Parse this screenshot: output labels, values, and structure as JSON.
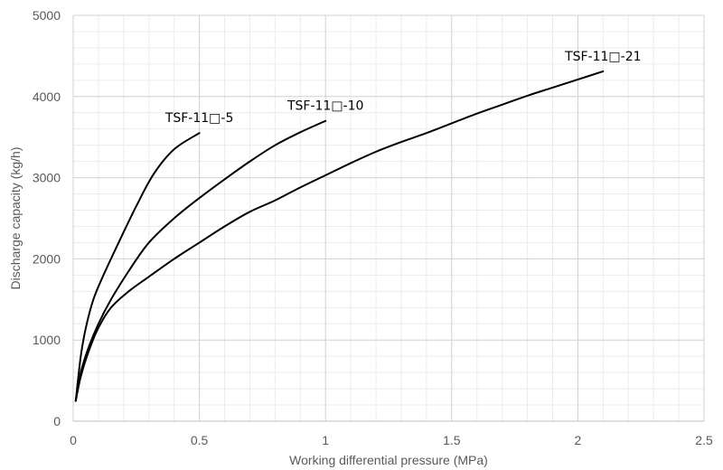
{
  "chart_data": {
    "type": "line",
    "title": "",
    "xlabel": "Working differential pressure (MPa)",
    "ylabel": "Discharge capacity (kg/h)",
    "xlim": [
      0,
      2.5
    ],
    "ylim": [
      0,
      5000
    ],
    "x_ticks": [
      0,
      0.5,
      1,
      1.5,
      2,
      2.5
    ],
    "x_tick_labels": [
      "0",
      "0.5",
      "1",
      "1.5",
      "2",
      "2.5"
    ],
    "y_ticks": [
      0,
      1000,
      2000,
      3000,
      4000,
      5000
    ],
    "y_tick_labels": [
      "0",
      "1000",
      "2000",
      "3000",
      "4000",
      "5000"
    ],
    "grid": true,
    "legend": "none",
    "line_color": "#000000",
    "series": [
      {
        "name": "TSF-11□-5",
        "x": [
          0.01,
          0.03,
          0.05,
          0.08,
          0.12,
          0.18,
          0.25,
          0.32,
          0.4,
          0.5
        ],
        "y": [
          250,
          800,
          1150,
          1500,
          1800,
          2200,
          2650,
          3050,
          3350,
          3550
        ]
      },
      {
        "name": "TSF-11□-10",
        "x": [
          0.01,
          0.03,
          0.06,
          0.1,
          0.15,
          0.22,
          0.3,
          0.4,
          0.5,
          0.6,
          0.7,
          0.8,
          0.9,
          1.0
        ],
        "y": [
          250,
          600,
          900,
          1200,
          1500,
          1850,
          2200,
          2500,
          2750,
          2980,
          3200,
          3400,
          3560,
          3700
        ]
      },
      {
        "name": "TSF-11□-21",
        "x": [
          0.01,
          0.03,
          0.06,
          0.1,
          0.15,
          0.22,
          0.3,
          0.4,
          0.5,
          0.6,
          0.7,
          0.8,
          0.9,
          1.0,
          1.1,
          1.2,
          1.3,
          1.4,
          1.5,
          1.6,
          1.7,
          1.8,
          1.9,
          2.0,
          2.1
        ],
        "y": [
          250,
          550,
          850,
          1150,
          1400,
          1600,
          1780,
          2000,
          2200,
          2400,
          2580,
          2720,
          2880,
          3030,
          3180,
          3320,
          3440,
          3550,
          3670,
          3790,
          3900,
          4010,
          4110,
          4210,
          4310
        ]
      }
    ],
    "colors": {
      "major_grid": "#d0d0d0",
      "minor_grid": "#ececec",
      "text": "#595959",
      "line": "#000000"
    }
  }
}
